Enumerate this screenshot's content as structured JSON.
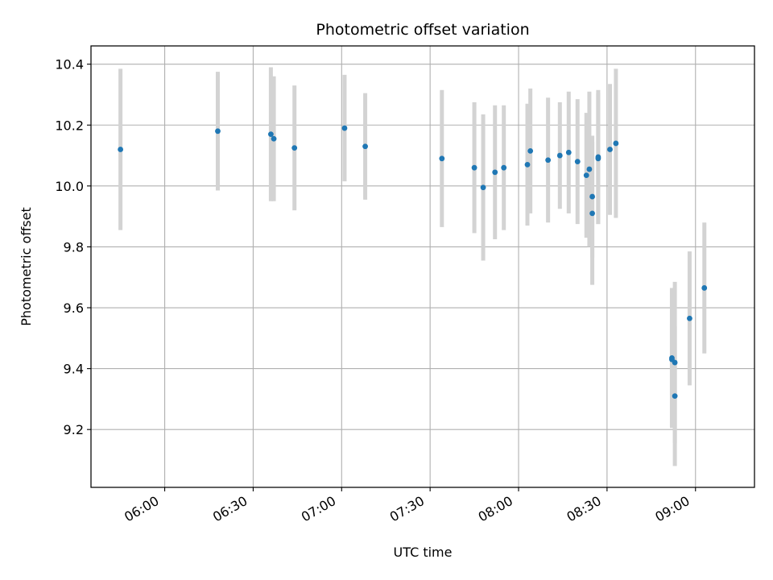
{
  "chart_data": {
    "type": "scatter",
    "title": "Photometric offset variation",
    "xlabel": "UTC time",
    "ylabel": "Photometric offset",
    "x_ticks": [
      "06:00",
      "06:30",
      "07:00",
      "07:30",
      "08:00",
      "08:30",
      "09:00"
    ],
    "y_ticks": [
      "9.2",
      "9.4",
      "9.6",
      "9.8",
      "10.0",
      "10.2",
      "10.4"
    ],
    "xlim": [
      "05:35",
      "09:20"
    ],
    "ylim": [
      9.01,
      10.46
    ],
    "grid": true,
    "marker_color": "#1f77b4",
    "errorbar_color": "#d3d3d3",
    "series": [
      {
        "points": [
          {
            "x": "05:45",
            "y": 10.12,
            "err": 0.265
          },
          {
            "x": "06:18",
            "y": 10.18,
            "err": 0.195
          },
          {
            "x": "06:36",
            "y": 10.17,
            "err": 0.22
          },
          {
            "x": "06:37",
            "y": 10.155,
            "err": 0.205
          },
          {
            "x": "06:44",
            "y": 10.125,
            "err": 0.205
          },
          {
            "x": "07:01",
            "y": 10.19,
            "err": 0.175
          },
          {
            "x": "07:08",
            "y": 10.13,
            "err": 0.175
          },
          {
            "x": "07:34",
            "y": 10.09,
            "err": 0.225
          },
          {
            "x": "07:45",
            "y": 10.06,
            "err": 0.215
          },
          {
            "x": "07:48",
            "y": 9.995,
            "err": 0.24
          },
          {
            "x": "07:52",
            "y": 10.045,
            "err": 0.22
          },
          {
            "x": "07:55",
            "y": 10.06,
            "err": 0.205
          },
          {
            "x": "08:03",
            "y": 10.07,
            "err": 0.2
          },
          {
            "x": "08:04",
            "y": 10.115,
            "err": 0.205
          },
          {
            "x": "08:10",
            "y": 10.085,
            "err": 0.205
          },
          {
            "x": "08:14",
            "y": 10.1,
            "err": 0.175
          },
          {
            "x": "08:17",
            "y": 10.11,
            "err": 0.2
          },
          {
            "x": "08:20",
            "y": 10.08,
            "err": 0.205
          },
          {
            "x": "08:23",
            "y": 10.035,
            "err": 0.205
          },
          {
            "x": "08:24",
            "y": 10.055,
            "err": 0.255
          },
          {
            "x": "08:25",
            "y": 9.965,
            "err": 0.2
          },
          {
            "x": "08:25",
            "y": 9.91,
            "err": 0.235
          },
          {
            "x": "08:27",
            "y": 10.09,
            "err": 0.215
          },
          {
            "x": "08:27",
            "y": 10.095,
            "err": 0.22
          },
          {
            "x": "08:31",
            "y": 10.12,
            "err": 0.215
          },
          {
            "x": "08:33",
            "y": 10.14,
            "err": 0.245
          },
          {
            "x": "08:52",
            "y": 9.435,
            "err": 0.23
          },
          {
            "x": "08:52",
            "y": 9.43,
            "err": 0.115
          },
          {
            "x": "08:53",
            "y": 9.42,
            "err": 0.265
          },
          {
            "x": "08:53",
            "y": 9.31,
            "err": 0.23
          },
          {
            "x": "08:58",
            "y": 9.565,
            "err": 0.22
          },
          {
            "x": "09:03",
            "y": 9.665,
            "err": 0.215
          }
        ]
      }
    ]
  }
}
